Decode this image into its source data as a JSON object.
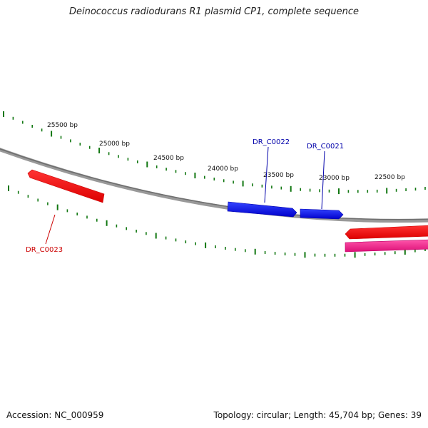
{
  "title": "Deinococcus radiodurans R1 plasmid CP1, complete sequence",
  "footer": {
    "accession": "Accession: NC_000959",
    "topology": "Topology: circular; Length: 45,704 bp; Genes: 39"
  },
  "ruler": {
    "tick_labels": [
      "25500 bp",
      "25000 bp",
      "24500 bp",
      "24000 bp",
      "23500 bp",
      "23000 bp",
      "22500 bp"
    ]
  },
  "genes": [
    {
      "name": "DR_C0023",
      "strand": "reverse",
      "color": "#ff0000",
      "label_color": "#cc0000"
    },
    {
      "name": "DR_C0022",
      "strand": "forward",
      "color": "#0000ee",
      "label_color": "#0000aa"
    },
    {
      "name": "DR_C0021",
      "strand": "forward",
      "color": "#0000ee",
      "label_color": "#0000aa"
    },
    {
      "name": "",
      "strand": "reverse",
      "color": "#ff0000"
    },
    {
      "name": "",
      "strand": "reverse",
      "color": "#ee1188"
    }
  ],
  "colors": {
    "backbone": "#888888",
    "ticks": "#117711",
    "forward_gene": "#0000ee",
    "reverse_gene": "#ff0000",
    "other_gene": "#ee1188"
  }
}
